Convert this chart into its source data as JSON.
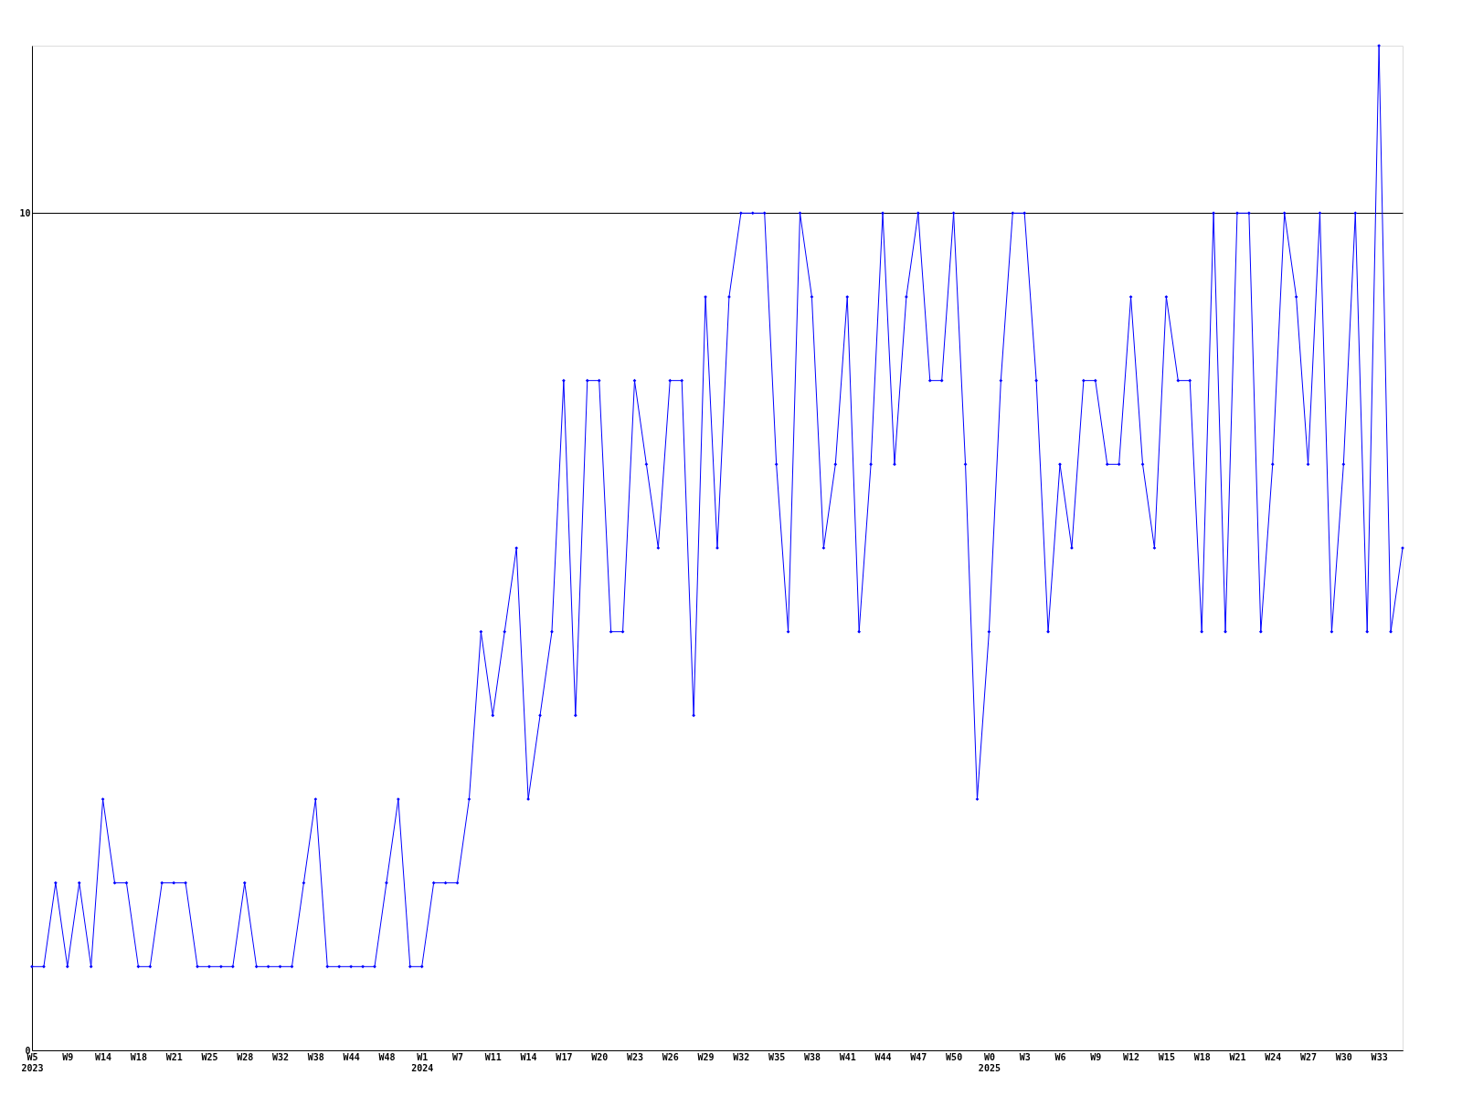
{
  "chart_data": {
    "type": "line",
    "categories": [
      "W5\n2023",
      null,
      null,
      "W9",
      null,
      null,
      "W14",
      null,
      null,
      "W18",
      null,
      null,
      "W21",
      null,
      null,
      "W25",
      null,
      null,
      "W28",
      null,
      null,
      "W32",
      null,
      null,
      "W38",
      null,
      null,
      "W44",
      null,
      null,
      "W48",
      null,
      null,
      "W1\n2024",
      null,
      null,
      "W7",
      null,
      null,
      "W11",
      null,
      null,
      "W14",
      null,
      null,
      "W17",
      null,
      null,
      "W20",
      null,
      null,
      "W23",
      null,
      null,
      "W26",
      null,
      null,
      "W29",
      null,
      null,
      "W32",
      null,
      null,
      "W35",
      null,
      null,
      "W38",
      null,
      null,
      "W41",
      null,
      null,
      "W44",
      null,
      null,
      "W47",
      null,
      null,
      "W50",
      null,
      null,
      "W0\n2025",
      null,
      null,
      "W3",
      null,
      null,
      "W6",
      null,
      null,
      "W9",
      null,
      null,
      "W12",
      null,
      null,
      "W15",
      null,
      null,
      "W18",
      null,
      null,
      "W21",
      null,
      null,
      "W24",
      null,
      null,
      "W27",
      null,
      null,
      "W30",
      null,
      null,
      "W33",
      null,
      null
    ],
    "series": [
      {
        "color": "#0000ff",
        "values": [
          1,
          1,
          2,
          1,
          2,
          1,
          3,
          2,
          2,
          1,
          1,
          2,
          2,
          2,
          1,
          1,
          1,
          1,
          2,
          1,
          1,
          1,
          1,
          2,
          3,
          1,
          1,
          1,
          1,
          1,
          2,
          3,
          1,
          1,
          2,
          2,
          2,
          3,
          5,
          4,
          5,
          6,
          3,
          4,
          5,
          8,
          4,
          8,
          8,
          5,
          5,
          8,
          7,
          6,
          8,
          8,
          4,
          9,
          6,
          9,
          10,
          10,
          10,
          7,
          5,
          10,
          9,
          6,
          7,
          9,
          5,
          7,
          10,
          7,
          9,
          10,
          8,
          8,
          10,
          7,
          3,
          5,
          8,
          10,
          10,
          8,
          5,
          7,
          6,
          8,
          8,
          7,
          7,
          9,
          7,
          6,
          9,
          8,
          8,
          5,
          10,
          5,
          10,
          10,
          5,
          7,
          10,
          9,
          7,
          10,
          5,
          7,
          10,
          5,
          12,
          5,
          6
        ]
      }
    ],
    "ylim": [
      0,
      12
    ],
    "yticks": [
      0,
      10
    ],
    "grid": "y",
    "marker": "diamond",
    "line_style": "solid",
    "legend": false
  }
}
